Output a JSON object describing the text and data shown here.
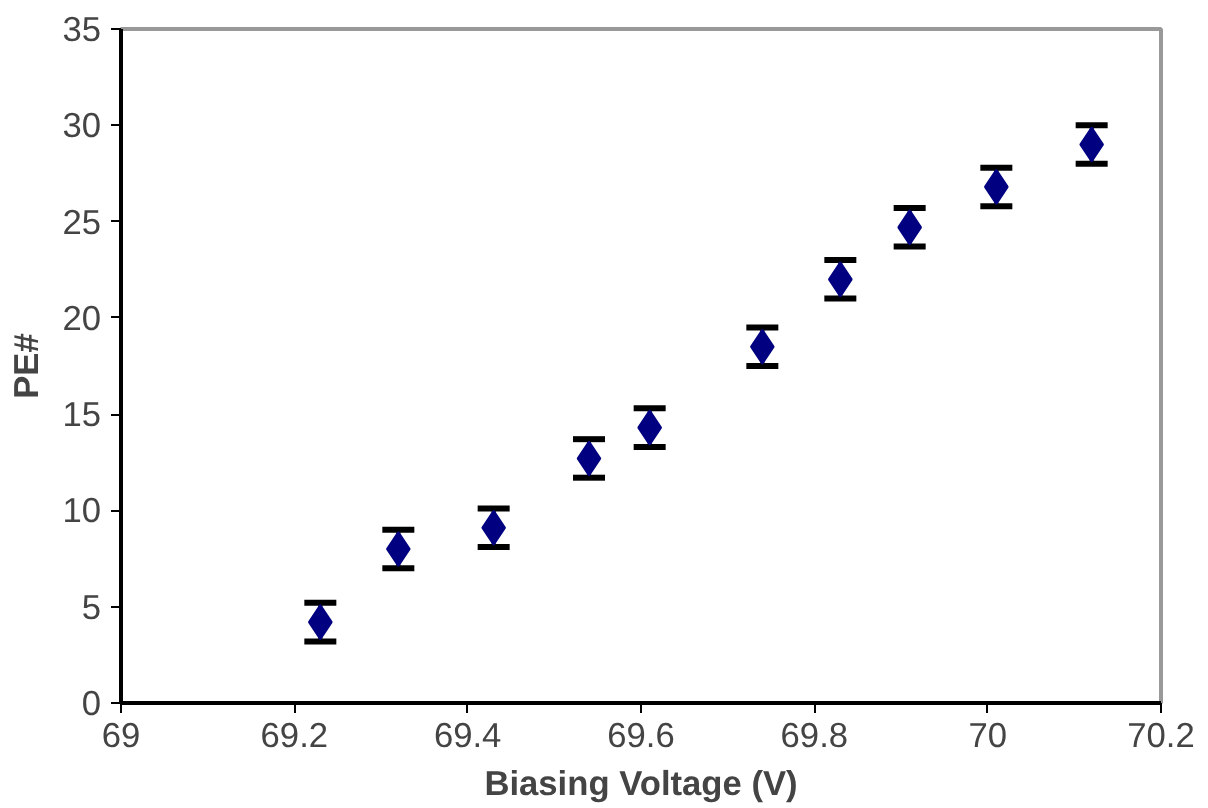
{
  "chart_data": {
    "type": "scatter",
    "xlabel": "Biasing Voltage (V)",
    "ylabel": "PE#",
    "x": [
      69.23,
      69.32,
      69.43,
      69.54,
      69.61,
      69.74,
      69.83,
      69.91,
      70.01,
      70.12
    ],
    "series": [
      {
        "color": "#000080",
        "values": [
          4.2,
          8.0,
          9.1,
          12.7,
          14.3,
          18.5,
          22.0,
          24.7,
          26.8,
          29.0
        ],
        "errors": [
          1,
          1,
          1,
          1,
          1,
          1,
          1,
          1,
          1,
          1
        ]
      }
    ],
    "marker": "diamond",
    "grid": false,
    "xlim": [
      69,
      70.2
    ],
    "xticks": [
      {
        "value": 69,
        "label": "69"
      },
      {
        "value": 69.2,
        "label": "69.2"
      },
      {
        "value": 69.4,
        "label": "69.4"
      },
      {
        "value": 69.6,
        "label": "69.6"
      },
      {
        "value": 69.8,
        "label": "69.8"
      },
      {
        "value": 70,
        "label": "70"
      },
      {
        "value": 70.2,
        "label": "70.2"
      }
    ],
    "ylim": [
      0,
      35
    ],
    "yticks": [
      0,
      5,
      10,
      15,
      20,
      25,
      30,
      35
    ]
  }
}
